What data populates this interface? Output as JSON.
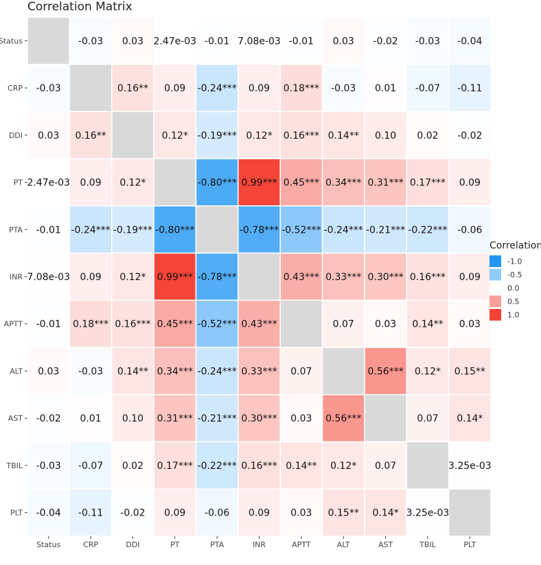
{
  "chart_data": {
    "type": "heatmap",
    "title": "Correlation Matrix",
    "variables": [
      "Status",
      "CRP",
      "DDI",
      "PT",
      "PTA",
      "INR",
      "APTT",
      "ALT",
      "AST",
      "TBIL",
      "PLT"
    ],
    "values": [
      [
        null,
        -0.03,
        0.03,
        0.00247,
        -0.01,
        0.00708,
        -0.01,
        0.03,
        -0.02,
        -0.03,
        -0.04
      ],
      [
        -0.03,
        null,
        0.16,
        0.09,
        -0.24,
        0.09,
        0.18,
        -0.03,
        0.01,
        -0.07,
        -0.11
      ],
      [
        0.03,
        0.16,
        null,
        0.12,
        -0.19,
        0.12,
        0.16,
        0.14,
        0.1,
        0.02,
        -0.02
      ],
      [
        0.00247,
        0.09,
        0.12,
        null,
        -0.8,
        0.99,
        0.45,
        0.34,
        0.31,
        0.17,
        0.09
      ],
      [
        -0.01,
        -0.24,
        -0.19,
        -0.8,
        null,
        -0.78,
        -0.52,
        -0.24,
        -0.21,
        -0.22,
        -0.06
      ],
      [
        0.00708,
        0.09,
        0.12,
        0.99,
        -0.78,
        null,
        0.43,
        0.33,
        0.3,
        0.16,
        0.09
      ],
      [
        -0.01,
        0.18,
        0.16,
        0.45,
        -0.52,
        0.43,
        null,
        0.07,
        0.03,
        0.14,
        0.03
      ],
      [
        0.03,
        -0.03,
        0.14,
        0.34,
        -0.24,
        0.33,
        0.07,
        null,
        0.56,
        0.12,
        0.15
      ],
      [
        -0.02,
        0.01,
        0.1,
        0.31,
        -0.21,
        0.3,
        0.03,
        0.56,
        null,
        0.07,
        0.14
      ],
      [
        -0.03,
        -0.07,
        0.02,
        0.17,
        -0.22,
        0.16,
        0.14,
        0.12,
        0.07,
        null,
        0.00325
      ],
      [
        -0.04,
        -0.11,
        -0.02,
        0.09,
        -0.06,
        0.09,
        0.03,
        0.15,
        0.14,
        0.00325,
        null
      ]
    ],
    "labels": [
      [
        "",
        "-0.03",
        "0.03",
        "2.47e-03",
        "-0.01",
        "7.08e-03",
        "-0.01",
        "0.03",
        "-0.02",
        "-0.03",
        "-0.04"
      ],
      [
        "-0.03",
        "",
        "0.16**",
        "0.09",
        "-0.24***",
        "0.09",
        "0.18***",
        "-0.03",
        "0.01",
        "-0.07",
        "-0.11"
      ],
      [
        "0.03",
        "0.16**",
        "",
        "0.12*",
        "-0.19***",
        "0.12*",
        "0.16***",
        "0.14**",
        "0.10",
        "0.02",
        "-0.02"
      ],
      [
        "2.47e-03",
        "0.09",
        "0.12*",
        "",
        "-0.80***",
        "0.99***",
        "0.45***",
        "0.34***",
        "0.31***",
        "0.17***",
        "0.09"
      ],
      [
        "-0.01",
        "-0.24***",
        "-0.19***",
        "-0.80***",
        "",
        "-0.78***",
        "-0.52***",
        "-0.24***",
        "-0.21***",
        "-0.22***",
        "-0.06"
      ],
      [
        "7.08e-03",
        "0.09",
        "0.12*",
        "0.99***",
        "-0.78***",
        "",
        "0.43***",
        "0.33***",
        "0.30***",
        "0.16***",
        "0.09"
      ],
      [
        "-0.01",
        "0.18***",
        "0.16***",
        "0.45***",
        "-0.52***",
        "0.43***",
        "",
        "0.07",
        "0.03",
        "0.14**",
        "0.03"
      ],
      [
        "0.03",
        "-0.03",
        "0.14**",
        "0.34***",
        "-0.24***",
        "0.33***",
        "0.07",
        "",
        "0.56***",
        "0.12*",
        "0.15**"
      ],
      [
        "-0.02",
        "0.01",
        "0.10",
        "0.31***",
        "-0.21***",
        "0.30***",
        "0.03",
        "0.56***",
        "",
        "0.07",
        "0.14*"
      ],
      [
        "-0.03",
        "-0.07",
        "0.02",
        "0.17***",
        "-0.22***",
        "0.16***",
        "0.14**",
        "0.12*",
        "0.07",
        "",
        "3.25e-03"
      ],
      [
        "-0.04",
        "-0.11",
        "-0.02",
        "0.09",
        "-0.06",
        "0.09",
        "0.03",
        "0.15**",
        "0.14*",
        "3.25e-03",
        ""
      ]
    ],
    "legend": {
      "title": "Correlation",
      "placement": "right",
      "entries": [
        {
          "label": "-1.0",
          "value": -1.0
        },
        {
          "label": "-0.5",
          "value": -0.5
        },
        {
          "label": "0.0",
          "value": 0.0
        },
        {
          "label": "0.5",
          "value": 0.5
        },
        {
          "label": "1.0",
          "value": 1.0
        }
      ]
    },
    "colors": {
      "negative": "#2196f3",
      "neutral": "#ffffff",
      "positive": "#f44336",
      "diagonal": "#d9d9d9"
    },
    "color_range": [
      -1,
      1
    ]
  }
}
